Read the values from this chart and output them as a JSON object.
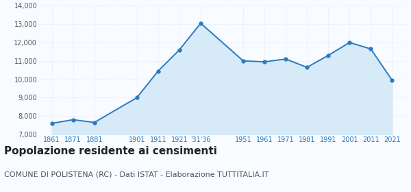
{
  "years": [
    "1861",
    "1871",
    "1881",
    "1901",
    "1911",
    "1921",
    "'31'36",
    "1951",
    "1961",
    "1971",
    "1981",
    "1991",
    "2001",
    "2011",
    "2021"
  ],
  "x_positions": [
    1861,
    1871,
    1881,
    1901,
    1911,
    1921,
    1931,
    1951,
    1961,
    1971,
    1981,
    1991,
    2001,
    2011,
    2021
  ],
  "values": [
    7600,
    7800,
    7650,
    9000,
    10450,
    11600,
    13050,
    11000,
    10950,
    11100,
    10650,
    11300,
    12000,
    11650,
    9950
  ],
  "line_color": "#2a7abf",
  "fill_color": "#d6eaf8",
  "marker": "o",
  "marker_size": 3.5,
  "ylim": [
    7000,
    14000
  ],
  "yticks": [
    7000,
    8000,
    9000,
    10000,
    11000,
    12000,
    13000,
    14000
  ],
  "title": "Popolazione residente ai censimenti",
  "subtitle": "COMUNE DI POLISTENA (RC) - Dati ISTAT - Elaborazione TUTTITALIA.IT",
  "title_fontsize": 11,
  "subtitle_fontsize": 8,
  "bg_color": "#f8fbff",
  "grid_color": "#dde8f0",
  "grid_linestyle": "dotted"
}
